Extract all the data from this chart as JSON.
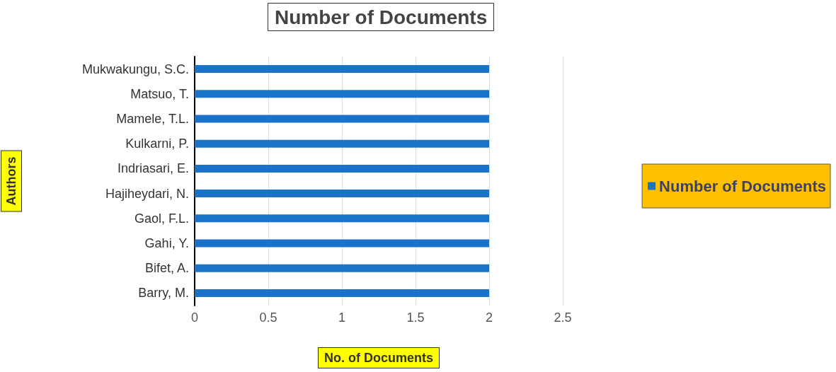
{
  "chart_data": {
    "type": "bar",
    "orientation": "horizontal",
    "title": "Number of Documents",
    "xlabel": "No. of Documents",
    "ylabel": "Authors",
    "categories": [
      "Mukwakungu, S.C.",
      "Matsuo, T.",
      "Mamele, T.L.",
      "Kulkarni, P.",
      "Indriasari, E.",
      "Hajiheydari, N.",
      "Gaol, F.L.",
      "Gahi, Y.",
      "Bifet, A.",
      "Barry, M."
    ],
    "series": [
      {
        "name": "Number of Documents",
        "color": "#1a73c8",
        "values": [
          2,
          2,
          2,
          2,
          2,
          2,
          2,
          2,
          2,
          2
        ]
      }
    ],
    "xlim": [
      0,
      2.5
    ],
    "xticks": [
      0,
      0.5,
      1,
      1.5,
      2,
      2.5
    ],
    "grid": "x",
    "legend": "right"
  }
}
